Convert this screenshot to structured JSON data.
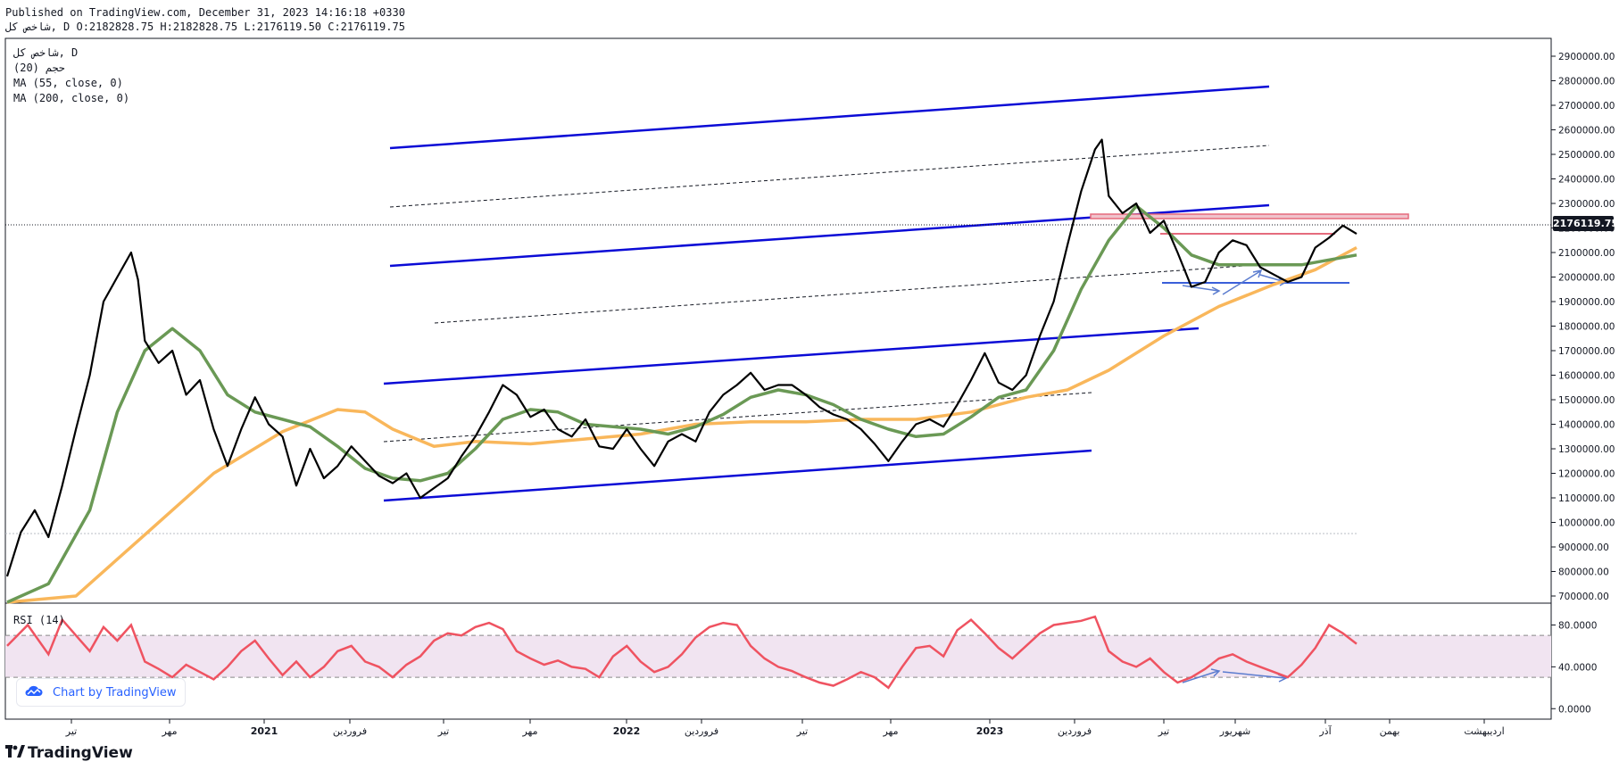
{
  "header": {
    "line1": "Published on TradingView.com, December 31, 2023 14:16:18 +0330",
    "line2": "شاخص کل, D O:2182828.75 H:2182828.75 L:2176119.50 C:2176119.75"
  },
  "legend": {
    "symbol": "شاخص کل, D",
    "vol": "(20) حجم",
    "ma55": "MA (55, close, 0)",
    "ma200": "MA (200, close, 0)",
    "rsi": "RSI (14)"
  },
  "price_badge": "2176119.75",
  "credit": "Chart by TradingView",
  "brand": "TradingView",
  "colors": {
    "price": "#000000",
    "ma55": "#6a9955",
    "ma200": "#f9b75b",
    "channel": "#0b0bd6",
    "rsi": "#ef5361",
    "rsi_band": "#f1e4f1",
    "zone": "#e56b7d",
    "arrows": "#5b7ccf"
  },
  "chart_data": {
    "type": "line",
    "ylim": [
      700000,
      2900000
    ],
    "y_ticks": [
      "2900000.00",
      "2800000.00",
      "2700000.00",
      "2600000.00",
      "2500000.00",
      "2400000.00",
      "2300000.00",
      "2200000.00",
      "2100000.00",
      "2000000.00",
      "1900000.00",
      "1800000.00",
      "1700000.00",
      "1600000.00",
      "1500000.00",
      "1400000.00",
      "1300000.00",
      "1200000.00",
      "1100000.00",
      "1000000.00",
      "900000.00",
      "800000.00",
      "700000.00"
    ],
    "x_ticks": [
      "تیر",
      "مهر",
      "2021",
      "فروردین",
      "تیر",
      "مهر",
      "2022",
      "فروردین",
      "تیر",
      "مهر",
      "2023",
      "فروردین",
      "تیر",
      "شهریور",
      "آذر",
      "بهمن",
      "اردیبهشت"
    ],
    "last_price": 2176119.75,
    "series": [
      {
        "name": "شاخص کل",
        "values": [
          [
            0,
            780000
          ],
          [
            2,
            960000
          ],
          [
            4,
            1050000
          ],
          [
            6,
            940000
          ],
          [
            8,
            1150000
          ],
          [
            10,
            1380000
          ],
          [
            12,
            1600000
          ],
          [
            14,
            1900000
          ],
          [
            16,
            2000000
          ],
          [
            18,
            2100000
          ],
          [
            19,
            1990000
          ],
          [
            20,
            1740000
          ],
          [
            22,
            1650000
          ],
          [
            24,
            1700000
          ],
          [
            26,
            1520000
          ],
          [
            28,
            1580000
          ],
          [
            30,
            1380000
          ],
          [
            32,
            1230000
          ],
          [
            34,
            1380000
          ],
          [
            36,
            1510000
          ],
          [
            38,
            1400000
          ],
          [
            40,
            1350000
          ],
          [
            42,
            1150000
          ],
          [
            44,
            1300000
          ],
          [
            46,
            1180000
          ],
          [
            48,
            1230000
          ],
          [
            50,
            1310000
          ],
          [
            52,
            1250000
          ],
          [
            54,
            1190000
          ],
          [
            56,
            1160000
          ],
          [
            58,
            1200000
          ],
          [
            60,
            1100000
          ],
          [
            62,
            1140000
          ],
          [
            64,
            1180000
          ],
          [
            66,
            1270000
          ],
          [
            68,
            1350000
          ],
          [
            70,
            1450000
          ],
          [
            72,
            1560000
          ],
          [
            74,
            1520000
          ],
          [
            76,
            1430000
          ],
          [
            78,
            1460000
          ],
          [
            80,
            1380000
          ],
          [
            82,
            1350000
          ],
          [
            84,
            1420000
          ],
          [
            86,
            1310000
          ],
          [
            88,
            1300000
          ],
          [
            90,
            1380000
          ],
          [
            92,
            1300000
          ],
          [
            94,
            1230000
          ],
          [
            96,
            1330000
          ],
          [
            98,
            1360000
          ],
          [
            100,
            1330000
          ],
          [
            102,
            1450000
          ],
          [
            104,
            1520000
          ],
          [
            106,
            1560000
          ],
          [
            108,
            1610000
          ],
          [
            110,
            1540000
          ],
          [
            112,
            1560000
          ],
          [
            114,
            1560000
          ],
          [
            116,
            1520000
          ],
          [
            118,
            1470000
          ],
          [
            120,
            1440000
          ],
          [
            122,
            1420000
          ],
          [
            124,
            1380000
          ],
          [
            126,
            1320000
          ],
          [
            128,
            1250000
          ],
          [
            130,
            1330000
          ],
          [
            132,
            1400000
          ],
          [
            134,
            1420000
          ],
          [
            136,
            1390000
          ],
          [
            138,
            1480000
          ],
          [
            140,
            1580000
          ],
          [
            142,
            1690000
          ],
          [
            144,
            1570000
          ],
          [
            146,
            1540000
          ],
          [
            148,
            1600000
          ],
          [
            150,
            1760000
          ],
          [
            152,
            1900000
          ],
          [
            154,
            2130000
          ],
          [
            156,
            2350000
          ],
          [
            158,
            2520000
          ],
          [
            159,
            2560000
          ],
          [
            160,
            2330000
          ],
          [
            162,
            2260000
          ],
          [
            164,
            2300000
          ],
          [
            166,
            2180000
          ],
          [
            168,
            2230000
          ],
          [
            170,
            2100000
          ],
          [
            172,
            1960000
          ],
          [
            174,
            1980000
          ],
          [
            176,
            2100000
          ],
          [
            178,
            2150000
          ],
          [
            180,
            2130000
          ],
          [
            182,
            2040000
          ],
          [
            184,
            2010000
          ],
          [
            186,
            1980000
          ],
          [
            188,
            2000000
          ],
          [
            190,
            2120000
          ],
          [
            192,
            2160000
          ],
          [
            194,
            2210000
          ],
          [
            196,
            2176120
          ]
        ]
      },
      {
        "name": "MA (55, close, 0)",
        "values": [
          [
            0,
            620000
          ],
          [
            6,
            750000
          ],
          [
            12,
            1050000
          ],
          [
            16,
            1450000
          ],
          [
            20,
            1700000
          ],
          [
            24,
            1790000
          ],
          [
            28,
            1700000
          ],
          [
            32,
            1520000
          ],
          [
            36,
            1450000
          ],
          [
            40,
            1420000
          ],
          [
            44,
            1390000
          ],
          [
            48,
            1310000
          ],
          [
            52,
            1220000
          ],
          [
            56,
            1180000
          ],
          [
            60,
            1170000
          ],
          [
            64,
            1200000
          ],
          [
            68,
            1300000
          ],
          [
            72,
            1420000
          ],
          [
            76,
            1460000
          ],
          [
            80,
            1450000
          ],
          [
            84,
            1400000
          ],
          [
            88,
            1390000
          ],
          [
            92,
            1380000
          ],
          [
            96,
            1360000
          ],
          [
            100,
            1390000
          ],
          [
            104,
            1440000
          ],
          [
            108,
            1510000
          ],
          [
            112,
            1540000
          ],
          [
            116,
            1520000
          ],
          [
            120,
            1480000
          ],
          [
            124,
            1420000
          ],
          [
            128,
            1380000
          ],
          [
            132,
            1350000
          ],
          [
            136,
            1360000
          ],
          [
            140,
            1430000
          ],
          [
            144,
            1510000
          ],
          [
            148,
            1540000
          ],
          [
            152,
            1700000
          ],
          [
            156,
            1950000
          ],
          [
            160,
            2150000
          ],
          [
            164,
            2290000
          ],
          [
            168,
            2200000
          ],
          [
            172,
            2090000
          ],
          [
            176,
            2050000
          ],
          [
            180,
            2050000
          ],
          [
            184,
            2050000
          ],
          [
            188,
            2050000
          ],
          [
            192,
            2070000
          ],
          [
            196,
            2090000
          ]
        ]
      },
      {
        "name": "MA (200, close, 0)",
        "values": [
          [
            0,
            500000
          ],
          [
            10,
            700000
          ],
          [
            20,
            950000
          ],
          [
            30,
            1200000
          ],
          [
            40,
            1370000
          ],
          [
            48,
            1460000
          ],
          [
            52,
            1450000
          ],
          [
            56,
            1380000
          ],
          [
            62,
            1310000
          ],
          [
            68,
            1330000
          ],
          [
            76,
            1320000
          ],
          [
            84,
            1340000
          ],
          [
            92,
            1360000
          ],
          [
            100,
            1400000
          ],
          [
            108,
            1410000
          ],
          [
            116,
            1410000
          ],
          [
            124,
            1420000
          ],
          [
            132,
            1420000
          ],
          [
            140,
            1450000
          ],
          [
            148,
            1510000
          ],
          [
            154,
            1540000
          ],
          [
            160,
            1620000
          ],
          [
            168,
            1760000
          ],
          [
            176,
            1880000
          ],
          [
            184,
            1970000
          ],
          [
            190,
            2030000
          ],
          [
            196,
            2120000
          ]
        ]
      }
    ],
    "rsi": {
      "name": "RSI (14)",
      "ylim": [
        -10,
        100
      ],
      "ticks": [
        "80.0000",
        "40.0000",
        "0.0000"
      ],
      "band": [
        30,
        70
      ],
      "values": [
        [
          0,
          60
        ],
        [
          3,
          80
        ],
        [
          6,
          52
        ],
        [
          8,
          85
        ],
        [
          10,
          70
        ],
        [
          12,
          55
        ],
        [
          14,
          78
        ],
        [
          16,
          65
        ],
        [
          18,
          80
        ],
        [
          20,
          45
        ],
        [
          22,
          38
        ],
        [
          24,
          30
        ],
        [
          26,
          42
        ],
        [
          28,
          35
        ],
        [
          30,
          28
        ],
        [
          32,
          40
        ],
        [
          34,
          55
        ],
        [
          36,
          65
        ],
        [
          38,
          48
        ],
        [
          40,
          32
        ],
        [
          42,
          45
        ],
        [
          44,
          30
        ],
        [
          46,
          40
        ],
        [
          48,
          55
        ],
        [
          50,
          60
        ],
        [
          52,
          45
        ],
        [
          54,
          40
        ],
        [
          56,
          30
        ],
        [
          58,
          42
        ],
        [
          60,
          50
        ],
        [
          62,
          65
        ],
        [
          64,
          72
        ],
        [
          66,
          70
        ],
        [
          68,
          78
        ],
        [
          70,
          82
        ],
        [
          72,
          76
        ],
        [
          74,
          55
        ],
        [
          76,
          48
        ],
        [
          78,
          42
        ],
        [
          80,
          46
        ],
        [
          82,
          40
        ],
        [
          84,
          38
        ],
        [
          86,
          30
        ],
        [
          88,
          50
        ],
        [
          90,
          60
        ],
        [
          92,
          45
        ],
        [
          94,
          35
        ],
        [
          96,
          40
        ],
        [
          98,
          52
        ],
        [
          100,
          68
        ],
        [
          102,
          78
        ],
        [
          104,
          82
        ],
        [
          106,
          80
        ],
        [
          108,
          60
        ],
        [
          110,
          48
        ],
        [
          112,
          40
        ],
        [
          114,
          36
        ],
        [
          116,
          30
        ],
        [
          118,
          25
        ],
        [
          120,
          22
        ],
        [
          122,
          28
        ],
        [
          124,
          35
        ],
        [
          126,
          30
        ],
        [
          128,
          20
        ],
        [
          130,
          40
        ],
        [
          132,
          58
        ],
        [
          134,
          60
        ],
        [
          136,
          50
        ],
        [
          138,
          75
        ],
        [
          140,
          85
        ],
        [
          142,
          72
        ],
        [
          144,
          58
        ],
        [
          146,
          48
        ],
        [
          148,
          60
        ],
        [
          150,
          72
        ],
        [
          152,
          80
        ],
        [
          154,
          82
        ],
        [
          156,
          84
        ],
        [
          158,
          88
        ],
        [
          160,
          55
        ],
        [
          162,
          45
        ],
        [
          164,
          40
        ],
        [
          166,
          48
        ],
        [
          168,
          35
        ],
        [
          170,
          25
        ],
        [
          172,
          30
        ],
        [
          174,
          38
        ],
        [
          176,
          48
        ],
        [
          178,
          52
        ],
        [
          180,
          45
        ],
        [
          182,
          40
        ],
        [
          184,
          35
        ],
        [
          186,
          30
        ],
        [
          188,
          42
        ],
        [
          190,
          58
        ],
        [
          192,
          80
        ],
        [
          194,
          72
        ],
        [
          196,
          62
        ]
      ]
    }
  }
}
